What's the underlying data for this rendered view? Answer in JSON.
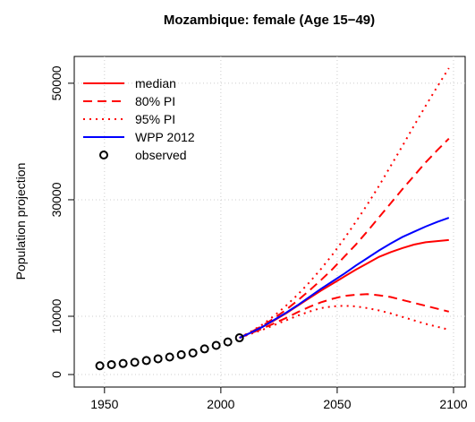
{
  "chart_data": {
    "type": "line",
    "title": "Mozambique: female (Age 15−49)",
    "ylabel": "Population projection",
    "xlim": [
      1937,
      2105
    ],
    "ylim": [
      -2150,
      54600
    ],
    "xticks": [
      1950,
      2000,
      2050,
      2100
    ],
    "yticks": [
      0,
      10000,
      30000,
      50000
    ],
    "grid": true,
    "legend": "top-left",
    "series": [
      {
        "name": "median",
        "color": "#ff0000",
        "dash": "solid",
        "x": [
          2008,
          2013,
          2018,
          2023,
          2028,
          2033,
          2038,
          2043,
          2048,
          2053,
          2058,
          2063,
          2068,
          2073,
          2078,
          2083,
          2088,
          2093,
          2098
        ],
        "values": [
          6300,
          7200,
          8200,
          9300,
          10500,
          11800,
          13100,
          14400,
          15600,
          16800,
          18000,
          19100,
          20200,
          21000,
          21700,
          22300,
          22700,
          22900,
          23100
        ]
      },
      {
        "name": "80% PI",
        "color": "#ff0000",
        "dash": "dashed",
        "x": [
          2008,
          2013,
          2018,
          2023,
          2028,
          2033,
          2038,
          2043,
          2048,
          2053,
          2058,
          2063,
          2068,
          2073,
          2078,
          2083,
          2088,
          2093,
          2098
        ],
        "values": [
          6300,
          7300,
          8400,
          9700,
          11100,
          12700,
          14400,
          16200,
          18100,
          20200,
          22300,
          24600,
          27000,
          29400,
          31800,
          34100,
          36400,
          38500,
          40500
        ],
        "lower": [
          6300,
          7100,
          7900,
          8800,
          9700,
          10700,
          11600,
          12400,
          13000,
          13500,
          13700,
          13800,
          13600,
          13300,
          12800,
          12300,
          11800,
          11300,
          10800
        ]
      },
      {
        "name": "95% PI",
        "color": "#ff0000",
        "dash": "dotted",
        "x": [
          2008,
          2013,
          2018,
          2023,
          2028,
          2033,
          2038,
          2043,
          2048,
          2053,
          2058,
          2063,
          2068,
          2073,
          2078,
          2083,
          2088,
          2093,
          2098
        ],
        "values": [
          6300,
          7400,
          8600,
          10100,
          11800,
          13700,
          15800,
          18100,
          20600,
          23300,
          26200,
          29200,
          32400,
          35800,
          39200,
          42700,
          46100,
          49400,
          52600
        ],
        "lower": [
          6300,
          7000,
          7700,
          8500,
          9300,
          10100,
          10800,
          11400,
          11700,
          11800,
          11700,
          11400,
          11000,
          10500,
          9900,
          9300,
          8700,
          8200,
          7700
        ]
      },
      {
        "name": "WPP 2012",
        "color": "#0000ff",
        "dash": "solid",
        "x": [
          2008,
          2013,
          2018,
          2023,
          2028,
          2033,
          2038,
          2043,
          2048,
          2053,
          2058,
          2063,
          2068,
          2073,
          2078,
          2083,
          2088,
          2093,
          2098
        ],
        "values": [
          6300,
          7200,
          8200,
          9400,
          10600,
          11900,
          13300,
          14700,
          16000,
          17300,
          18700,
          20000,
          21300,
          22500,
          23600,
          24500,
          25400,
          26200,
          26900
        ]
      },
      {
        "name": "observed",
        "color": "#000000",
        "dash": "points",
        "x": [
          1948,
          1953,
          1958,
          1963,
          1968,
          1973,
          1978,
          1983,
          1988,
          1993,
          1998,
          2003,
          2008
        ],
        "values": [
          1500,
          1700,
          1900,
          2100,
          2400,
          2700,
          3000,
          3400,
          3700,
          4400,
          5000,
          5600,
          6300
        ]
      }
    ]
  }
}
